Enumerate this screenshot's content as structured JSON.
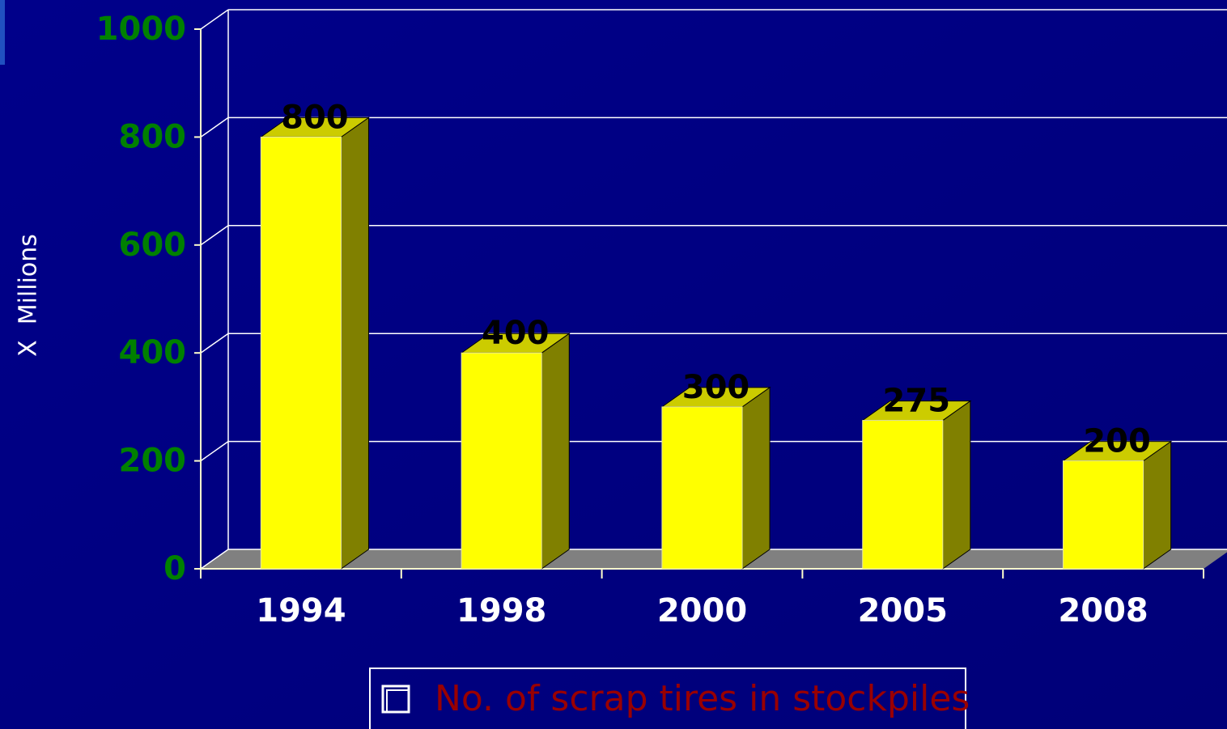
{
  "chart_data": {
    "type": "bar3d",
    "ylabel": "X  Millions",
    "categories": [
      "1994",
      "1998",
      "2000",
      "2005",
      "2008"
    ],
    "series": [
      {
        "name": "No. of scrap tires in stockpiles",
        "color": "#ffff00",
        "values": [
          800,
          400,
          300,
          275,
          200
        ]
      }
    ],
    "ylim": [
      0,
      1000
    ],
    "yticks": [
      0,
      200,
      400,
      600,
      800,
      1000
    ],
    "grid": true,
    "legend": "bottom"
  }
}
